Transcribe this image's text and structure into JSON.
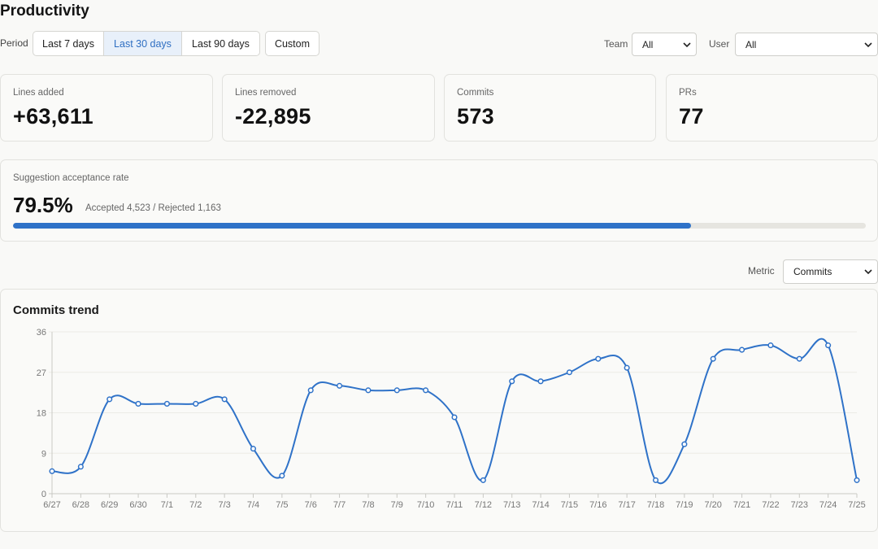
{
  "page": {
    "title": "Productivity"
  },
  "filters": {
    "period_label": "Period",
    "period_options": [
      {
        "label": "Last 7 days",
        "active": false
      },
      {
        "label": "Last 30 days",
        "active": true
      },
      {
        "label": "Last 90 days",
        "active": false
      }
    ],
    "custom_label": "Custom",
    "team_label": "Team",
    "team_value": "All",
    "user_label": "User",
    "user_value": "All"
  },
  "stats": [
    {
      "label": "Lines added",
      "value": "+63,611"
    },
    {
      "label": "Lines removed",
      "value": "-22,895"
    },
    {
      "label": "Commits",
      "value": "573"
    },
    {
      "label": "PRs",
      "value": "77"
    }
  ],
  "suggestion": {
    "label": "Suggestion acceptance rate",
    "value": "79.5%",
    "detail": "Accepted 4,523 / Rejected 1,163",
    "rate": 0.795
  },
  "metric": {
    "label": "Metric",
    "value": "Commits"
  },
  "colors": {
    "accent": "#2f72c8",
    "active_bg": "#e8f0fa",
    "active_text": "#2f6fc2"
  },
  "chart_data": {
    "type": "line",
    "title": "Commits trend",
    "xlabel": "",
    "ylabel": "",
    "categories": [
      "6/27",
      "6/28",
      "6/29",
      "6/30",
      "7/1",
      "7/2",
      "7/3",
      "7/4",
      "7/5",
      "7/6",
      "7/7",
      "7/8",
      "7/9",
      "7/10",
      "7/11",
      "7/12",
      "7/13",
      "7/14",
      "7/15",
      "7/16",
      "7/17",
      "7/18",
      "7/19",
      "7/20",
      "7/21",
      "7/22",
      "7/23",
      "7/24",
      "7/25"
    ],
    "values": [
      5,
      6,
      21,
      20,
      20,
      20,
      21,
      10,
      4,
      23,
      24,
      23,
      23,
      23,
      17,
      3,
      25,
      25,
      27,
      30,
      28,
      3,
      11,
      30,
      32,
      33,
      30,
      33,
      3
    ],
    "ylim": [
      0,
      36
    ],
    "yticks": [
      0,
      9,
      18,
      27,
      36
    ],
    "grid": true,
    "legend": "none"
  }
}
